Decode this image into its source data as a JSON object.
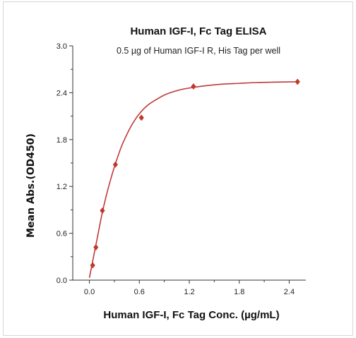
{
  "chart_data": {
    "type": "scatter",
    "title": "Human IGF-I, Fc Tag ELISA",
    "subtitle": "0.5 µg of Human IGF-I R, His Tag per well",
    "xlabel": "Human IGF-I, Fc Tag Conc. (µg/mL)",
    "ylabel": "Mean Abs.(OD450)",
    "xlim": [
      -0.2,
      2.6
    ],
    "ylim": [
      0.0,
      3.0
    ],
    "xticks": [
      0.0,
      0.6,
      1.2,
      1.8,
      2.4
    ],
    "xtick_labels": [
      "0.0",
      "0.6",
      "1.2",
      "1.8",
      "2.4"
    ],
    "yticks": [
      0.0,
      0.6,
      1.2,
      1.8,
      2.4,
      3.0
    ],
    "ytick_labels": [
      "0.0",
      "0.6",
      "1.2",
      "1.8",
      "2.4",
      "3.0"
    ],
    "grid": false,
    "marker": "diamond",
    "color": "#c0392b",
    "line_color": "#c0393b",
    "series": [
      {
        "x": [
          0.039,
          0.078,
          0.156,
          0.3125,
          0.625,
          1.25,
          2.5
        ],
        "y": [
          0.19,
          0.42,
          0.89,
          1.48,
          2.08,
          2.48,
          2.54
        ]
      }
    ],
    "fit": {
      "type": "saturation-curve",
      "x": [
        0.0,
        0.05,
        0.1,
        0.15,
        0.2,
        0.25,
        0.3,
        0.35,
        0.4,
        0.5,
        0.6,
        0.7,
        0.8,
        0.9,
        1.0,
        1.1,
        1.2,
        1.4,
        1.6,
        1.8,
        2.0,
        2.2,
        2.5
      ],
      "y": [
        0.03,
        0.3,
        0.57,
        0.84,
        1.07,
        1.27,
        1.45,
        1.61,
        1.75,
        1.97,
        2.13,
        2.24,
        2.31,
        2.37,
        2.41,
        2.44,
        2.46,
        2.49,
        2.51,
        2.52,
        2.53,
        2.535,
        2.54
      ]
    }
  }
}
